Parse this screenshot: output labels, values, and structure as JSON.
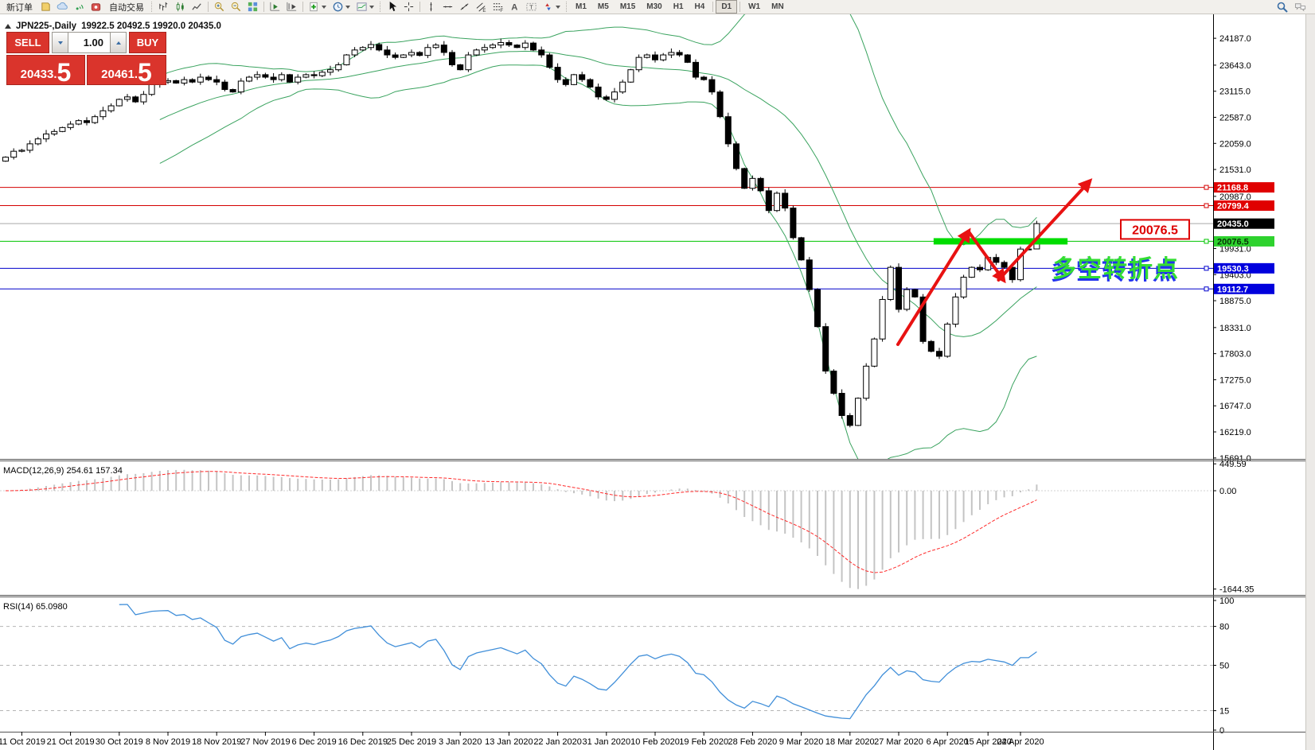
{
  "toolbar": {
    "new_order_label": "新订单",
    "autotrading_label": "自动交易",
    "channel_badge": "E",
    "fibo_badge": "F",
    "text_glyph": "A",
    "label_glyph": "T",
    "timeframes": [
      "M1",
      "M5",
      "M15",
      "M30",
      "H1",
      "H4",
      "D1",
      "W1",
      "MN"
    ],
    "active_timeframe": "D1",
    "icon_names": [
      "charts-icon",
      "mql5-community-icon",
      "signals-icon",
      "autotrading-icon",
      "bar-chart-icon",
      "candlestick-chart-icon",
      "line-chart-icon",
      "zoom-in-icon",
      "zoom-out-icon",
      "tile-windows-icon",
      "auto-scroll-icon",
      "chart-shift-icon",
      "add-indicator-icon",
      "timeframes-clock-icon",
      "templates-icon",
      "cursor-icon",
      "crosshair-icon",
      "vertical-line-icon",
      "horizontal-line-icon",
      "trendline-icon",
      "equidistant-channel-icon",
      "fibonacci-icon",
      "text-icon",
      "text-label-icon",
      "arrows-icon",
      "search-icon",
      "chat-icon"
    ]
  },
  "trade_panel": {
    "sell_label": "SELL",
    "buy_label": "BUY",
    "volume": "1.00",
    "sell_price": {
      "main": "20433",
      "sep": ".",
      "big": "5"
    },
    "buy_price": {
      "main": "20461",
      "sep": ".",
      "big": "5"
    }
  },
  "chart_header": {
    "symbol_period": "JPN225-,Daily",
    "ohlc": "19922.5 20492.5 19920.0 20435.0"
  },
  "chart_data": {
    "type": "candlestick",
    "symbol": "JPN225",
    "timeframe": "Daily",
    "closes": [
      21780,
      21900,
      21920,
      22050,
      22150,
      22250,
      22300,
      22380,
      22450,
      22520,
      22480,
      22600,
      22720,
      22820,
      22950,
      23000,
      22900,
      23050,
      23250,
      23300,
      23330,
      23280,
      23350,
      23300,
      23400,
      23350,
      23300,
      23150,
      23100,
      23320,
      23400,
      23450,
      23400,
      23350,
      23450,
      23300,
      23400,
      23450,
      23430,
      23500,
      23550,
      23650,
      23850,
      23950,
      24000,
      24060,
      23950,
      23850,
      23800,
      23850,
      23900,
      23840,
      24000,
      24050,
      23900,
      23650,
      23550,
      23850,
      23950,
      24000,
      24050,
      24100,
      24050,
      24000,
      24090,
      23950,
      23850,
      23600,
      23350,
      23250,
      23450,
      23350,
      23200,
      23000,
      22950,
      23100,
      23300,
      23550,
      23800,
      23850,
      23750,
      23850,
      23900,
      23850,
      23700,
      23400,
      23350,
      23100,
      22600,
      22050,
      21550,
      21150,
      21350,
      21100,
      20700,
      21050,
      20750,
      20150,
      19700,
      19100,
      18350,
      17450,
      17000,
      16550,
      16350,
      16900,
      17550,
      18100,
      18900,
      19550,
      18700,
      19100,
      18950,
      18050,
      17850,
      17750,
      18400,
      18950,
      19350,
      19550,
      19500,
      19750,
      19650,
      19550,
      19300,
      19920,
      19920,
      20435
    ],
    "last_candle": {
      "open": 19922.5,
      "high": 20492.5,
      "low": 19920.0,
      "close": 20435.0
    },
    "current_price": {
      "value": 20435.0,
      "label": "20435.0"
    },
    "y_ticks": [
      24187,
      23643,
      23115,
      22587,
      22059,
      21531,
      20987,
      19931,
      19403,
      18875,
      18331,
      17803,
      17275,
      16747,
      16219,
      15691
    ],
    "levels": [
      {
        "value": 21168.8,
        "label": "21168.8",
        "color": "red"
      },
      {
        "value": 20799.4,
        "label": "20799.4",
        "color": "red"
      },
      {
        "value": 20076.5,
        "label": "20076.5",
        "color": "green"
      },
      {
        "value": 19530.3,
        "label": "19530.3",
        "color": "blue"
      },
      {
        "value": 19112.7,
        "label": "19112.7",
        "color": "blue"
      }
    ],
    "date_labels": [
      "11 Oct 2019",
      "21 Oct 2019",
      "30 Oct 2019",
      "8 Nov 2019",
      "18 Nov 2019",
      "27 Nov 2019",
      "6 Dec 2019",
      "16 Dec 2019",
      "25 Dec 2019",
      "3 Jan 2020",
      "13 Jan 2020",
      "22 Jan 2020",
      "31 Jan 2020",
      "10 Feb 2020",
      "19 Feb 2020",
      "28 Feb 2020",
      "9 Mar 2020",
      "18 Mar 2020",
      "27 Mar 2020",
      "6 Apr 2020",
      "15 Apr 2020",
      "24 Apr 2020"
    ],
    "date_tick_indices": [
      2,
      8,
      14,
      20,
      26,
      32,
      38,
      44,
      50,
      56,
      62,
      68,
      74,
      80,
      86,
      92,
      98,
      104,
      110,
      116,
      121,
      125
    ],
    "bollinger": {
      "period": 20,
      "deviation": 2
    },
    "macd": {
      "name": "MACD",
      "params": "12,26,9",
      "value_main": "254.61",
      "value_signal": "157.34",
      "scale_ticks": [
        {
          "v": 449.59,
          "t": "449.59"
        },
        {
          "v": 0,
          "t": "0.00"
        },
        {
          "v": -1644.35,
          "t": "-1644.35"
        }
      ]
    },
    "rsi": {
      "name": "RSI",
      "params": "14",
      "value": "65.0980",
      "scale_ticks": [
        100,
        80,
        50,
        15,
        0
      ],
      "level_lines": [
        80,
        50,
        15
      ]
    },
    "annotations": {
      "price_box": {
        "text": "20076.5",
        "x": 1408
      },
      "turning_point": {
        "text": "多空转折点",
        "x": 1322,
        "price": 19360
      },
      "highlight_bar": {
        "level": 20076.5,
        "from_index": 114.3,
        "to_index": 130.8
      },
      "arrows": [
        {
          "from": {
            "index": 109.9,
            "price": 17990
          },
          "to": {
            "index": 118.6,
            "price": 20277
          }
        },
        {
          "from": {
            "index": 118.6,
            "price": 20277
          },
          "to": {
            "index": 122.9,
            "price": 19295
          }
        },
        {
          "from": {
            "index": 122.3,
            "price": 19295
          },
          "to": {
            "index": 133.5,
            "price": 21291
          }
        }
      ]
    },
    "colors": {
      "red_level": "#d40000",
      "green_level": "#00c400",
      "blue_level": "#0000cc",
      "bollinger": "#3aa35f",
      "macd_hist": "#c4c4c4",
      "macd_signal": "#ff2a2a",
      "rsi_line": "#418fd9",
      "highlight": "#00dd00",
      "arrow": "#e81212",
      "annotation_green": "#33dd33",
      "annotation_blue": "#2233ee"
    }
  }
}
